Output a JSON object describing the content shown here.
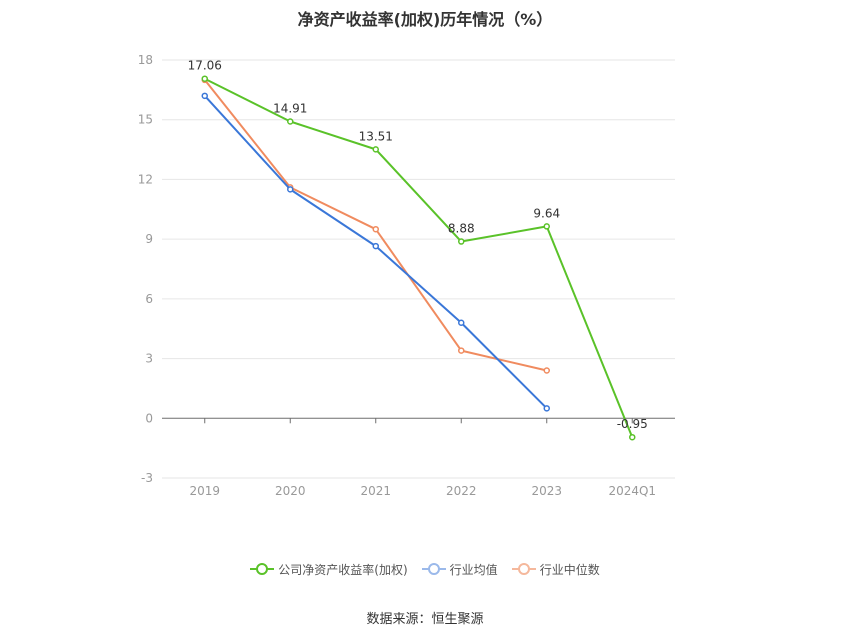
{
  "title": "净资产收益率(加权)历年情况（%）",
  "source": "数据来源：恒生聚源",
  "chart_data": {
    "type": "line",
    "categories": [
      "2019",
      "2020",
      "2021",
      "2022",
      "2023",
      "2024Q1"
    ],
    "ylim": [
      -3,
      18
    ],
    "yticks": [
      -3,
      0,
      3,
      6,
      9,
      12,
      15,
      18
    ],
    "grid": true,
    "legend_position": "bottom",
    "series": [
      {
        "name": "公司净资产收益率(加权)",
        "color": "#5ac229",
        "values": [
          17.06,
          14.91,
          13.51,
          8.88,
          9.64,
          -0.95
        ],
        "labels": [
          "17.06",
          "14.91",
          "13.51",
          "8.88",
          "9.64",
          "-0.95"
        ]
      },
      {
        "name": "行业均值",
        "color": "#3a77d8",
        "values": [
          16.2,
          11.5,
          8.65,
          4.8,
          0.5,
          null
        ]
      },
      {
        "name": "行业中位数",
        "color": "#f08b5f",
        "values": [
          17.0,
          11.6,
          9.5,
          3.4,
          2.4,
          null
        ]
      }
    ]
  }
}
